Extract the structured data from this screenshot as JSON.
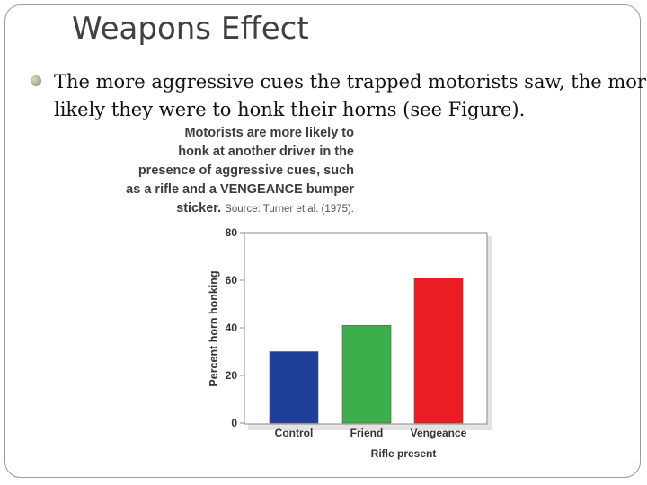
{
  "slide": {
    "title": "Weapons Effect",
    "bullet_line_1": "The more aggressive cues the trapped motorists saw, the more",
    "bullet_line_2": "likely they were to honk their horns (see Figure)."
  },
  "figure_caption": {
    "line_1": "Motorists are more likely to",
    "line_2": "honk at another driver in the",
    "line_3": "presence of aggressive cues, such",
    "line_4": "as a rifle and a VENGEANCE bumper",
    "line_5": "sticker.",
    "source": "Source: Turner et al. (1975)."
  },
  "chart_data": {
    "type": "bar",
    "categories": [
      "Control",
      "Friend",
      "Vengeance"
    ],
    "values": [
      30,
      41,
      61
    ],
    "colors": [
      "#1f3e98",
      "#3daf4a",
      "#ec1c24"
    ],
    "xlabel": "Rifle present",
    "ylabel": "Percent horn honking",
    "ylim": [
      0,
      80
    ],
    "yticks": [
      0,
      20,
      40,
      60,
      80
    ],
    "grid": false,
    "legend": "none"
  }
}
